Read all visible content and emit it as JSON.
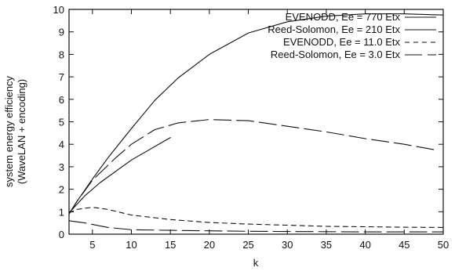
{
  "chart_data": {
    "type": "line",
    "xlabel": "k",
    "ylabel_lines": [
      "system energy efficiency",
      "(WaveLAN + encoding)"
    ],
    "xlim": [
      2,
      50
    ],
    "ylim": [
      0,
      10
    ],
    "xticks": [
      5,
      10,
      15,
      20,
      25,
      30,
      35,
      40,
      45,
      50
    ],
    "yticks": [
      0,
      1,
      2,
      3,
      4,
      5,
      6,
      7,
      8,
      9,
      10
    ],
    "grid": false,
    "legend_position": "top-right",
    "series": [
      {
        "name": "EVENODD, Ee = 770 Etx",
        "dash": "solid",
        "x": [
          2,
          3,
          5,
          7,
          10,
          13,
          16,
          20,
          25,
          30,
          35,
          40,
          45,
          50
        ],
        "y": [
          0.9,
          1.45,
          2.45,
          3.4,
          4.7,
          5.95,
          6.95,
          8.0,
          8.95,
          9.45,
          9.7,
          9.8,
          9.8,
          9.75
        ]
      },
      {
        "name": "Reed-Solomon, Ee = 210 Etx",
        "dash": "solid",
        "x": [
          2,
          4,
          6,
          10,
          15
        ],
        "y": [
          0.95,
          1.7,
          2.3,
          3.3,
          4.3
        ]
      },
      {
        "name": "EVENODD, Ee = 11.0 Etx",
        "dash": "short",
        "x": [
          2,
          3,
          5,
          7,
          10,
          15,
          20,
          25,
          30,
          35,
          40,
          45,
          50
        ],
        "y": [
          0.95,
          1.1,
          1.2,
          1.1,
          0.85,
          0.65,
          0.52,
          0.45,
          0.4,
          0.35,
          0.33,
          0.31,
          0.3
        ]
      },
      {
        "name": "Reed-Solomon, Ee = 3.0 Etx",
        "dash": "long",
        "x": [
          2,
          3,
          5,
          8,
          10,
          13,
          16,
          20,
          25,
          30,
          35,
          40,
          45,
          49
        ],
        "y": [
          0.9,
          1.45,
          2.4,
          3.4,
          4.0,
          4.65,
          4.95,
          5.1,
          5.05,
          4.8,
          4.55,
          4.25,
          4.0,
          3.75
        ]
      },
      {
        "name": "",
        "dash": "long",
        "x": [
          2,
          4,
          7,
          10,
          15,
          20,
          25,
          30,
          35,
          40,
          45,
          50
        ],
        "y": [
          0.6,
          0.5,
          0.3,
          0.2,
          0.17,
          0.15,
          0.13,
          0.12,
          0.11,
          0.1,
          0.1,
          0.1
        ]
      }
    ]
  }
}
